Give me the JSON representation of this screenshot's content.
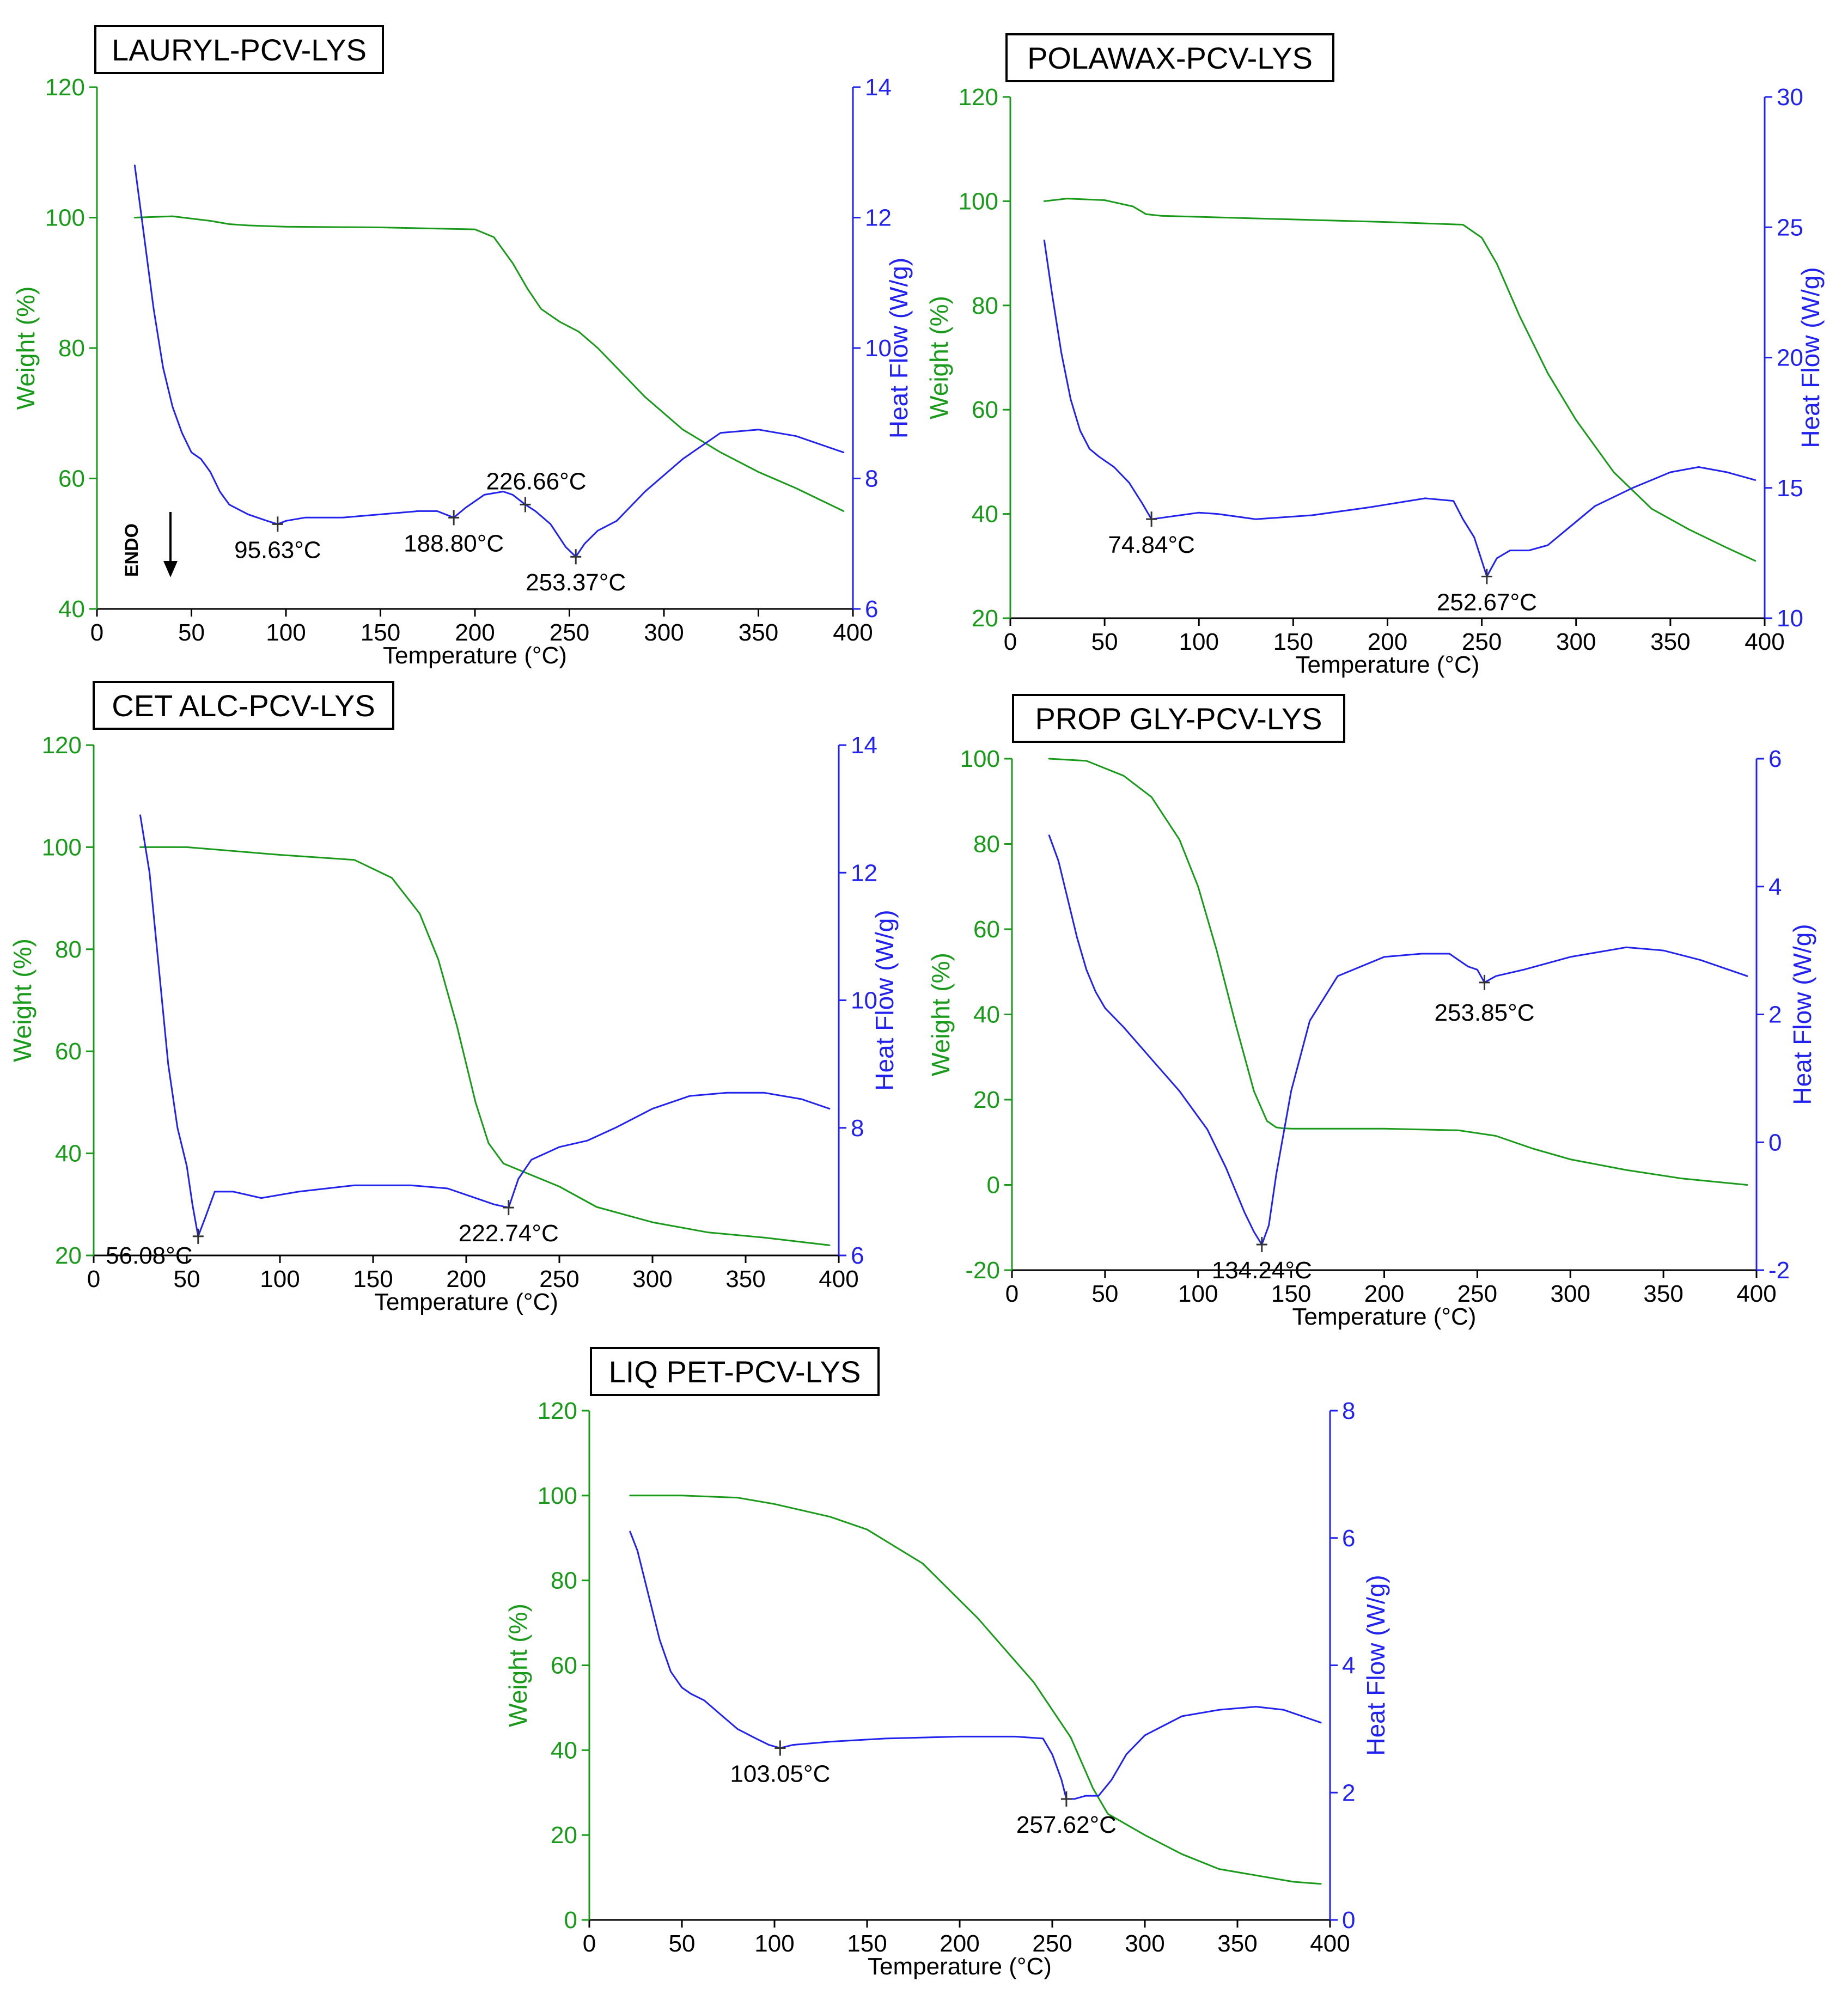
{
  "colors": {
    "weight": "#1a9a1a",
    "heat": "#2222ee",
    "text": "#000000"
  },
  "chart_data": [
    {
      "id": "lauryl",
      "type": "line",
      "title": "LAURYL-PCV-LYS",
      "xlabel": "Temperature (°C)",
      "ylabel_left": "Weight (%)",
      "ylabel_right": "Heat Flow (W/g)",
      "xlim": [
        0,
        400
      ],
      "xticks": [
        0,
        50,
        100,
        150,
        200,
        250,
        300,
        350,
        400
      ],
      "ylim_left": [
        40,
        120
      ],
      "yticks_left": [
        40,
        60,
        80,
        100,
        120
      ],
      "ylim_right": [
        6,
        14
      ],
      "yticks_right": [
        6,
        8,
        10,
        12,
        14
      ],
      "endo_label": "ENDO",
      "series": [
        {
          "name": "Weight",
          "axis": "left",
          "x": [
            20,
            40,
            60,
            70,
            80,
            100,
            150,
            200,
            210,
            220,
            228,
            235,
            245,
            255,
            265,
            275,
            290,
            310,
            330,
            350,
            370,
            395
          ],
          "y": [
            100,
            100.2,
            99.5,
            99,
            98.8,
            98.6,
            98.5,
            98.2,
            97,
            93,
            89,
            86,
            84,
            82.5,
            80,
            77,
            72.5,
            67.5,
            64,
            61,
            58.5,
            55
          ]
        },
        {
          "name": "Heat Flow",
          "axis": "right",
          "x": [
            20,
            25,
            30,
            35,
            40,
            45,
            50,
            55,
            60,
            65,
            70,
            80,
            90,
            95.63,
            100,
            110,
            130,
            150,
            170,
            180,
            188.8,
            195,
            205,
            215,
            220,
            226.66,
            232,
            240,
            248,
            253.37,
            258,
            265,
            275,
            290,
            310,
            330,
            350,
            370,
            395
          ],
          "y": [
            12.8,
            11.7,
            10.6,
            9.7,
            9.1,
            8.7,
            8.4,
            8.3,
            8.1,
            7.8,
            7.6,
            7.45,
            7.35,
            7.3,
            7.35,
            7.4,
            7.4,
            7.45,
            7.5,
            7.5,
            7.4,
            7.55,
            7.75,
            7.8,
            7.75,
            7.6,
            7.5,
            7.3,
            6.95,
            6.8,
            7.0,
            7.2,
            7.35,
            7.8,
            8.3,
            8.7,
            8.75,
            8.65,
            8.4
          ]
        }
      ],
      "annotations": [
        {
          "x": 95.63,
          "y": 7.3,
          "label": "95.63°C"
        },
        {
          "x": 188.8,
          "y": 7.4,
          "label": "188.80°C"
        },
        {
          "x": 226.66,
          "y": 7.6,
          "label": "226.66°C"
        },
        {
          "x": 253.37,
          "y": 6.8,
          "label": "253.37°C"
        }
      ]
    },
    {
      "id": "polawax",
      "type": "line",
      "title": "POLAWAX-PCV-LYS",
      "xlabel": "Temperature (°C)",
      "ylabel_left": "Weight (%)",
      "ylabel_right": "Heat Flow (W/g)",
      "xlim": [
        0,
        400
      ],
      "xticks": [
        0,
        50,
        100,
        150,
        200,
        250,
        300,
        350,
        400
      ],
      "ylim_left": [
        20,
        120
      ],
      "yticks_left": [
        20,
        40,
        60,
        80,
        100,
        120
      ],
      "ylim_right": [
        10,
        30
      ],
      "yticks_right": [
        10,
        15,
        20,
        25,
        30
      ],
      "series": [
        {
          "name": "Weight",
          "axis": "left",
          "x": [
            18,
            30,
            50,
            65,
            72,
            80,
            100,
            150,
            200,
            240,
            250,
            258,
            270,
            285,
            300,
            320,
            340,
            360,
            380,
            395
          ],
          "y": [
            100,
            100.5,
            100.2,
            99,
            97.5,
            97.2,
            97,
            96.5,
            96,
            95.5,
            93,
            88,
            78,
            67,
            58,
            48,
            41,
            37,
            33.5,
            31
          ]
        },
        {
          "name": "Heat Flow",
          "axis": "right",
          "x": [
            18,
            22,
            27,
            32,
            37,
            42,
            47,
            55,
            63,
            70,
            74.84,
            80,
            100,
            110,
            130,
            160,
            190,
            220,
            235,
            240,
            246,
            252.67,
            258,
            265,
            275,
            285,
            295,
            310,
            330,
            350,
            365,
            380,
            395
          ],
          "y": [
            24.5,
            22.5,
            20.2,
            18.4,
            17.2,
            16.5,
            16.2,
            15.8,
            15.2,
            14.4,
            13.8,
            13.85,
            14.05,
            14.0,
            13.8,
            13.95,
            14.25,
            14.6,
            14.5,
            13.8,
            13.1,
            11.6,
            12.3,
            12.6,
            12.6,
            12.8,
            13.4,
            14.3,
            15.0,
            15.6,
            15.8,
            15.6,
            15.3
          ]
        }
      ],
      "annotations": [
        {
          "x": 74.84,
          "y": 13.8,
          "label": "74.84°C"
        },
        {
          "x": 252.67,
          "y": 11.6,
          "label": "252.67°C"
        }
      ]
    },
    {
      "id": "cetalc",
      "type": "line",
      "title": "CET ALC-PCV-LYS",
      "xlabel": "Temperature (°C)",
      "ylabel_left": "Weight (%)",
      "ylabel_right": "Heat Flow (W/g)",
      "xlim": [
        0,
        400
      ],
      "xticks": [
        0,
        50,
        100,
        150,
        200,
        250,
        300,
        350,
        400
      ],
      "ylim_left": [
        20,
        120
      ],
      "yticks_left": [
        20,
        40,
        60,
        80,
        100,
        120
      ],
      "ylim_right": [
        6,
        14
      ],
      "yticks_right": [
        6,
        8,
        10,
        12,
        14
      ],
      "series": [
        {
          "name": "Weight",
          "axis": "left",
          "x": [
            25,
            50,
            100,
            140,
            160,
            175,
            185,
            195,
            205,
            212,
            220,
            230,
            250,
            270,
            300,
            330,
            360,
            395
          ],
          "y": [
            100,
            100,
            98.5,
            97.5,
            94,
            87,
            78,
            65,
            50,
            42,
            38,
            36.5,
            33.5,
            29.5,
            26.5,
            24.5,
            23.5,
            22
          ]
        },
        {
          "name": "Heat Flow",
          "axis": "right",
          "x": [
            25,
            30,
            35,
            40,
            45,
            50,
            53,
            56.08,
            60,
            65,
            75,
            90,
            110,
            140,
            170,
            190,
            205,
            215,
            222.74,
            228,
            235,
            250,
            265,
            280,
            300,
            320,
            340,
            360,
            380,
            395
          ],
          "y": [
            12.9,
            12,
            10.5,
            9,
            8,
            7.4,
            6.8,
            6.3,
            6.6,
            7.0,
            7.0,
            6.9,
            7.0,
            7.1,
            7.1,
            7.05,
            6.9,
            6.8,
            6.75,
            7.2,
            7.5,
            7.7,
            7.8,
            8.0,
            8.3,
            8.5,
            8.55,
            8.55,
            8.45,
            8.3
          ]
        }
      ],
      "annotations": [
        {
          "x": 56.08,
          "y": 6.3,
          "label": "56.08°C"
        },
        {
          "x": 222.74,
          "y": 6.75,
          "label": "222.74°C"
        }
      ]
    },
    {
      "id": "propgly",
      "type": "line",
      "title": "PROP GLY-PCV-LYS",
      "xlabel": "Temperature (°C)",
      "ylabel_left": "Weight (%)",
      "ylabel_right": "Heat Flow (W/g)",
      "xlim": [
        0,
        400
      ],
      "xticks": [
        0,
        50,
        100,
        150,
        200,
        250,
        300,
        350,
        400
      ],
      "ylim_left": [
        -20,
        100
      ],
      "yticks_left": [
        -20,
        0,
        20,
        40,
        60,
        80,
        100
      ],
      "ylim_right": [
        -2,
        6
      ],
      "yticks_right": [
        -2,
        0,
        2,
        4,
        6
      ],
      "series": [
        {
          "name": "Weight",
          "axis": "left",
          "x": [
            20,
            40,
            60,
            75,
            90,
            100,
            110,
            120,
            130,
            137,
            142,
            145,
            150,
            200,
            240,
            260,
            280,
            300,
            330,
            360,
            395
          ],
          "y": [
            100,
            99.5,
            96,
            91,
            81,
            70,
            55,
            38,
            22,
            15,
            13.5,
            13.3,
            13.2,
            13.2,
            12.8,
            11.5,
            8.5,
            6,
            3.5,
            1.5,
            0
          ]
        },
        {
          "name": "Heat Flow",
          "axis": "right",
          "x": [
            20,
            25,
            30,
            35,
            40,
            45,
            50,
            60,
            75,
            90,
            105,
            115,
            125,
            130,
            134.24,
            138,
            142,
            150,
            160,
            175,
            200,
            220,
            235,
            245,
            250,
            253.85,
            260,
            275,
            300,
            330,
            350,
            370,
            395
          ],
          "y": [
            4.8,
            4.4,
            3.8,
            3.2,
            2.7,
            2.35,
            2.1,
            1.8,
            1.3,
            0.8,
            0.2,
            -0.4,
            -1.1,
            -1.4,
            -1.6,
            -1.3,
            -0.5,
            0.8,
            1.9,
            2.6,
            2.9,
            2.95,
            2.95,
            2.75,
            2.7,
            2.5,
            2.6,
            2.7,
            2.9,
            3.05,
            3.0,
            2.85,
            2.6
          ]
        }
      ],
      "annotations": [
        {
          "x": 134.24,
          "y": -1.6,
          "label": "134.24°C"
        },
        {
          "x": 253.85,
          "y": 2.5,
          "label": "253.85°C"
        }
      ]
    },
    {
      "id": "liqpet",
      "type": "line",
      "title": "LIQ PET-PCV-LYS",
      "xlabel": "Temperature (°C)",
      "ylabel_left": "Weight (%)",
      "ylabel_right": "Heat Flow (W/g)",
      "xlim": [
        0,
        400
      ],
      "xticks": [
        0,
        50,
        100,
        150,
        200,
        250,
        300,
        350,
        400
      ],
      "ylim_left": [
        0,
        120
      ],
      "yticks_left": [
        0,
        20,
        40,
        60,
        80,
        100,
        120
      ],
      "ylim_right": [
        0,
        8
      ],
      "yticks_right": [
        0,
        2,
        4,
        6,
        8
      ],
      "series": [
        {
          "name": "Weight",
          "axis": "left",
          "x": [
            22,
            50,
            80,
            100,
            130,
            150,
            180,
            210,
            240,
            260,
            272,
            280,
            300,
            320,
            340,
            360,
            380,
            395
          ],
          "y": [
            100,
            100,
            99.5,
            98,
            95,
            92,
            84,
            71,
            56,
            43,
            31,
            25,
            20,
            15.5,
            12,
            10.5,
            9,
            8.5
          ]
        },
        {
          "name": "Heat Flow",
          "axis": "right",
          "x": [
            22,
            26,
            32,
            38,
            44,
            50,
            55,
            62,
            70,
            80,
            90,
            97,
            103.05,
            110,
            130,
            160,
            200,
            230,
            245,
            250,
            255,
            257.62,
            262,
            268,
            275,
            282,
            290,
            300,
            310,
            320,
            340,
            360,
            375,
            395
          ],
          "y": [
            6.1,
            5.8,
            5.1,
            4.4,
            3.9,
            3.65,
            3.55,
            3.45,
            3.25,
            3.0,
            2.85,
            2.75,
            2.7,
            2.75,
            2.8,
            2.85,
            2.88,
            2.88,
            2.85,
            2.6,
            2.2,
            1.9,
            1.9,
            1.95,
            1.95,
            2.2,
            2.6,
            2.9,
            3.05,
            3.2,
            3.3,
            3.35,
            3.3,
            3.1
          ]
        }
      ],
      "annotations": [
        {
          "x": 103.05,
          "y": 2.7,
          "label": "103.05°C"
        },
        {
          "x": 257.62,
          "y": 1.9,
          "label": "257.62°C"
        }
      ]
    }
  ]
}
